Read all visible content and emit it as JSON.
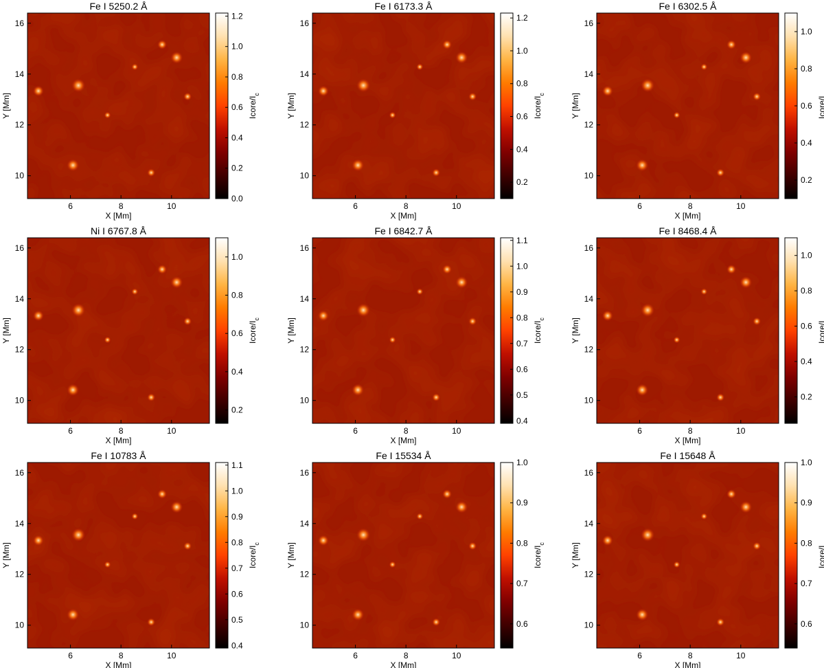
{
  "figure": {
    "colormap": "gist_heat",
    "colormap_stops": [
      "#000000",
      "#400000",
      "#800000",
      "#c01000",
      "#ff4200",
      "#ff7c00",
      "#ffb545",
      "#ffe1b0",
      "#ffffff"
    ],
    "xlabel": "X [Mm]",
    "ylabel": "Y [Mm]",
    "cbar_label_main": "Icore/I",
    "cbar_label_sub": "c",
    "xticks": [
      "6",
      "8",
      "10"
    ],
    "yticks": [
      "10",
      "12",
      "14",
      "16"
    ]
  },
  "chart_data": [
    {
      "type": "heatmap",
      "title": "Fe I 5250.2 Å",
      "xlabel": "X [Mm]",
      "ylabel": "Y [Mm]",
      "xlim": [
        4.3,
        11.5
      ],
      "ylim": [
        9.1,
        16.4
      ],
      "cbar_label": "Icore/Ic",
      "cbar_range": [
        0.0,
        1.22
      ],
      "cbar_ticks": [
        "0.0",
        "0.2",
        "0.4",
        "0.6",
        "0.8",
        "1.0",
        "1.2"
      ]
    },
    {
      "type": "heatmap",
      "title": "Fe I 6173.3 Å",
      "xlabel": "X [Mm]",
      "ylabel": "Y [Mm]",
      "xlim": [
        4.3,
        11.5
      ],
      "ylim": [
        9.1,
        16.4
      ],
      "cbar_label": "Icore/Ic",
      "cbar_range": [
        0.1,
        1.23
      ],
      "cbar_ticks": [
        "0.2",
        "0.4",
        "0.6",
        "0.8",
        "1.0",
        "1.2"
      ]
    },
    {
      "type": "heatmap",
      "title": "Fe I 6302.5 Å",
      "xlabel": "X [Mm]",
      "ylabel": "Y [Mm]",
      "xlim": [
        4.3,
        11.5
      ],
      "ylim": [
        9.1,
        16.4
      ],
      "cbar_label": "Icore/Ic",
      "cbar_range": [
        0.1,
        1.1
      ],
      "cbar_ticks": [
        "0.2",
        "0.4",
        "0.6",
        "0.8",
        "1.0"
      ]
    },
    {
      "type": "heatmap",
      "title": "Ni I 6767.8 Å",
      "xlabel": "X [Mm]",
      "ylabel": "Y [Mm]",
      "xlim": [
        4.3,
        11.5
      ],
      "ylim": [
        9.1,
        16.4
      ],
      "cbar_label": "Icore/Ic",
      "cbar_range": [
        0.13,
        1.1
      ],
      "cbar_ticks": [
        "0.2",
        "0.4",
        "0.6",
        "0.8",
        "1.0"
      ]
    },
    {
      "type": "heatmap",
      "title": "Fe I 6842.7 Å",
      "xlabel": "X [Mm]",
      "ylabel": "Y [Mm]",
      "xlim": [
        4.3,
        11.5
      ],
      "ylim": [
        9.1,
        16.4
      ],
      "cbar_label": "Icore/Ic",
      "cbar_range": [
        0.39,
        1.11
      ],
      "cbar_ticks": [
        "0.4",
        "0.5",
        "0.6",
        "0.7",
        "0.8",
        "0.9",
        "1.0",
        "1.1"
      ]
    },
    {
      "type": "heatmap",
      "title": "Fe I 8468.4 Å",
      "xlabel": "X [Mm]",
      "ylabel": "Y [Mm]",
      "xlim": [
        4.3,
        11.5
      ],
      "ylim": [
        9.1,
        16.4
      ],
      "cbar_label": "Icore/Ic",
      "cbar_range": [
        0.05,
        1.1
      ],
      "cbar_ticks": [
        "0.2",
        "0.4",
        "0.6",
        "0.8",
        "1.0"
      ]
    },
    {
      "type": "heatmap",
      "title": "Fe I 10783 Å",
      "xlabel": "X [Mm]",
      "ylabel": "Y [Mm]",
      "xlim": [
        4.3,
        11.5
      ],
      "ylim": [
        9.1,
        16.4
      ],
      "cbar_label": "Icore/Ic",
      "cbar_range": [
        0.39,
        1.11
      ],
      "cbar_ticks": [
        "0.4",
        "0.5",
        "0.6",
        "0.7",
        "0.8",
        "0.9",
        "1.0",
        "1.1"
      ]
    },
    {
      "type": "heatmap",
      "title": "Fe I 15534 Å",
      "xlabel": "X [Mm]",
      "ylabel": "Y [Mm]",
      "xlim": [
        4.3,
        11.5
      ],
      "ylim": [
        9.1,
        16.4
      ],
      "cbar_label": "Icore/Ic",
      "cbar_range": [
        0.54,
        1.0
      ],
      "cbar_ticks": [
        "0.6",
        "0.7",
        "0.8",
        "0.9",
        "1.0"
      ]
    },
    {
      "type": "heatmap",
      "title": "Fe I 15648 Å",
      "xlabel": "X [Mm]",
      "ylabel": "Y [Mm]",
      "xlim": [
        4.3,
        11.5
      ],
      "ylim": [
        9.1,
        16.4
      ],
      "cbar_label": "Icore/Ic",
      "cbar_range": [
        0.54,
        1.0
      ],
      "cbar_ticks": [
        "0.6",
        "0.7",
        "0.8",
        "0.9",
        "1.0"
      ]
    }
  ]
}
